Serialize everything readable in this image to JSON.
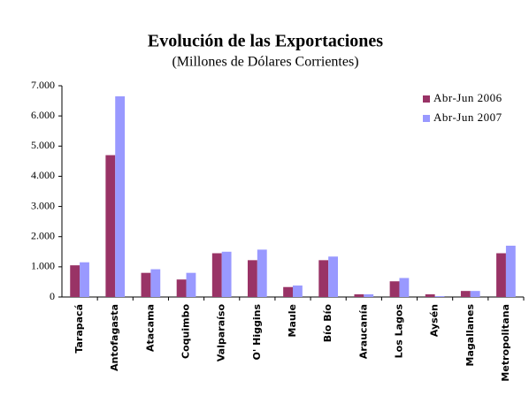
{
  "chart_data": {
    "type": "bar",
    "title": "Evolución de las Exportaciones",
    "subtitle": "(Millones de Dólares Corrientes)",
    "categories": [
      "Tarapacá",
      "Antofagasta",
      "Atacama",
      "Coquimbo",
      "Valparaíso",
      "O' Higgins",
      "Maule",
      "Bío Bío",
      "Araucanía",
      "Los Lagos",
      "Aysén",
      "Magallanes",
      "Metropolitana"
    ],
    "series": [
      {
        "name": "Abr-Jun 2006",
        "color": "#993366",
        "values": [
          1050,
          4700,
          800,
          580,
          1450,
          1220,
          330,
          1220,
          90,
          520,
          90,
          200,
          1450
        ]
      },
      {
        "name": "Abr-Jun 2007",
        "color": "#9999ff",
        "values": [
          1150,
          6650,
          920,
          800,
          1500,
          1570,
          380,
          1340,
          90,
          630,
          30,
          200,
          1700
        ]
      }
    ],
    "ylim": [
      0,
      7000
    ],
    "yticks": [
      0,
      {
        "value": 1000,
        "label": "1.000"
      },
      {
        "value": 2000,
        "label": "2.000"
      },
      {
        "value": 3000,
        "label": "3.000"
      },
      {
        "value": 4000,
        "label": "4.000"
      },
      {
        "value": 5000,
        "label": "5.000"
      },
      {
        "value": 6000,
        "label": "6.000"
      },
      {
        "value": 7000,
        "label": "7.000"
      }
    ],
    "grid": false,
    "legend": "top-right"
  }
}
